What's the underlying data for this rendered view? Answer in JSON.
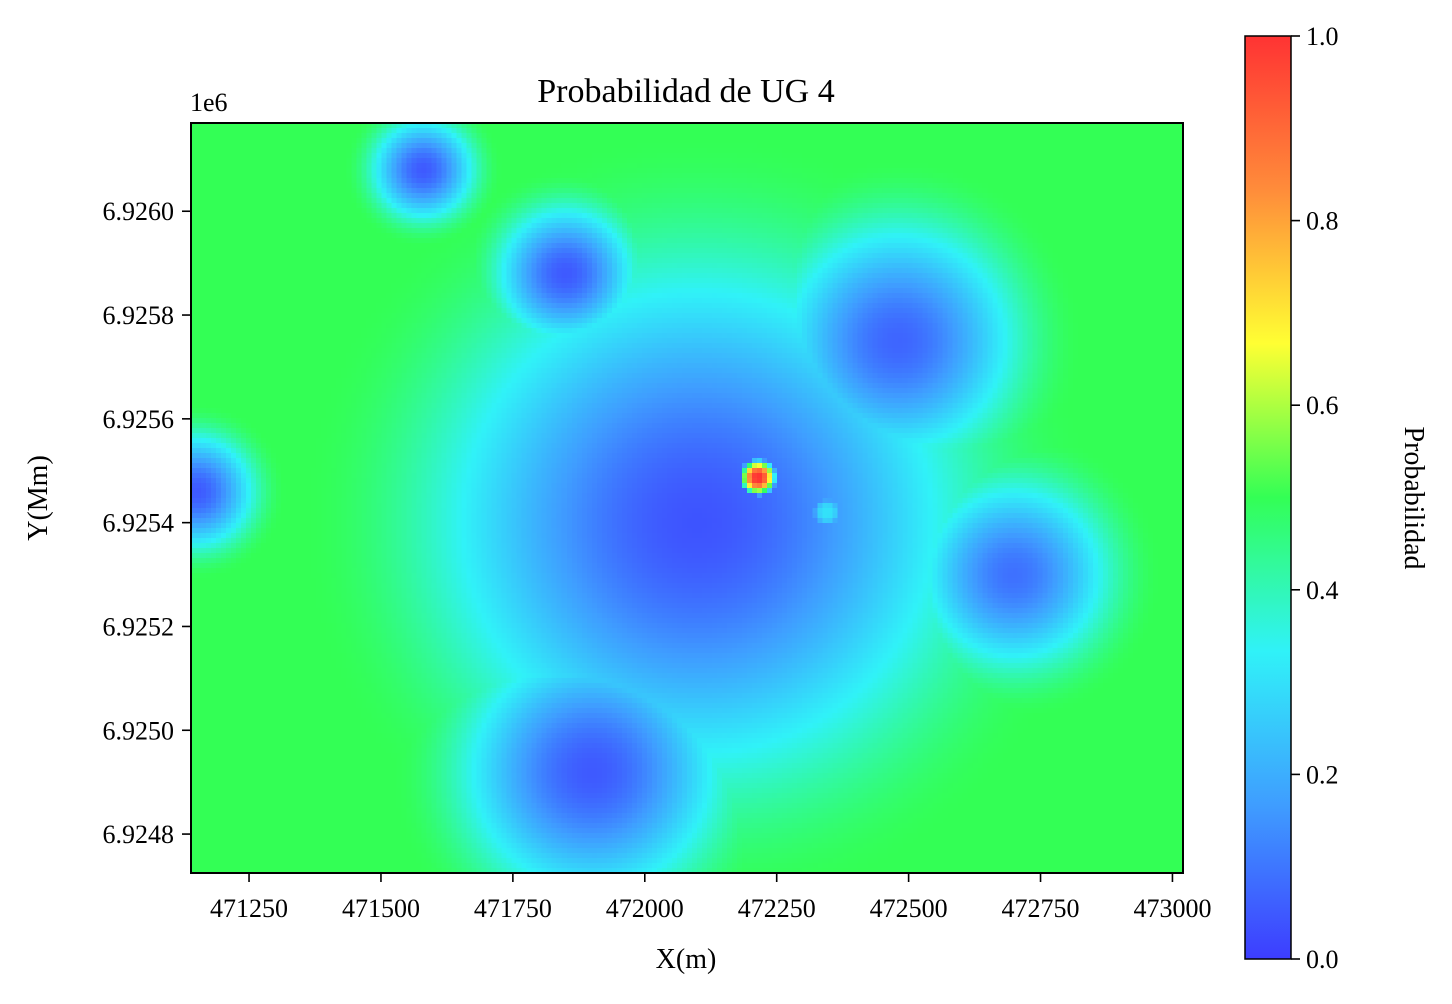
{
  "chart_data": {
    "type": "heatmap",
    "title": "Probabilidad de UG 4",
    "xlabel": "X(m)",
    "ylabel": "Y(Mm)",
    "offset_text": "1e6",
    "xlim": [
      471140,
      473020
    ],
    "ylim": [
      6924725,
      6926170
    ],
    "x_ticks": [
      471250,
      471500,
      471750,
      472000,
      472250,
      472500,
      472750,
      473000
    ],
    "x_tick_labels": [
      "471250",
      "471500",
      "471750",
      "472000",
      "472250",
      "472500",
      "472750",
      "473000"
    ],
    "y_ticks": [
      6924800,
      6925000,
      6925200,
      6925400,
      6925600,
      6925800,
      6926000
    ],
    "y_tick_labels": [
      "6.9248",
      "6.9250",
      "6.9252",
      "6.9254",
      "6.9256",
      "6.9258",
      "6.9260"
    ],
    "colorbar": {
      "label": "Probabilidad",
      "range": [
        0.0,
        1.0
      ],
      "ticks": [
        0.0,
        0.2,
        0.4,
        0.6,
        0.8,
        1.0
      ],
      "tick_labels": [
        "0.0",
        "0.2",
        "0.4",
        "0.6",
        "0.8",
        "1.0"
      ],
      "colormap": [
        "#3d3dff",
        "#3f9dff",
        "#30f2f8",
        "#33ff55",
        "#ffff33",
        "#ff8c3a",
        "#ff3333"
      ]
    },
    "surface": {
      "background": 0.5,
      "basins": [
        {
          "x": 472100,
          "y": 6925400,
          "r": 750,
          "v": 0.04
        },
        {
          "x": 471580,
          "y": 6926080,
          "r": 150,
          "v": 0.05
        },
        {
          "x": 471850,
          "y": 6925880,
          "r": 200,
          "v": 0.05
        },
        {
          "x": 471150,
          "y": 6925460,
          "r": 170,
          "v": 0.05
        },
        {
          "x": 471900,
          "y": 6924920,
          "r": 380,
          "v": 0.05
        },
        {
          "x": 472480,
          "y": 6925750,
          "r": 350,
          "v": 0.07
        },
        {
          "x": 472700,
          "y": 6925300,
          "r": 280,
          "v": 0.09
        }
      ],
      "hotspots": [
        {
          "x": 472215,
          "y": 6925487,
          "r": 35,
          "v": 1.0
        },
        {
          "x": 472345,
          "y": 6925420,
          "r": 25,
          "v": 0.28
        }
      ]
    }
  }
}
